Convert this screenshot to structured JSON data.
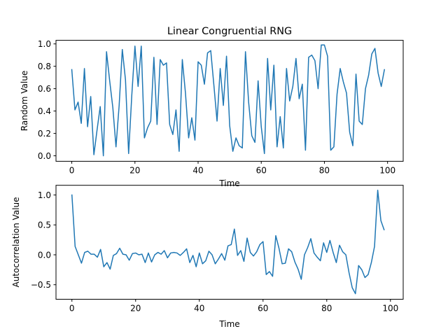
{
  "figure": {
    "background": "#ffffff",
    "line_color": "#1f77b4"
  },
  "chart_data": [
    {
      "type": "line",
      "title": "Linear Congruential RNG",
      "xlabel": "Time",
      "ylabel": "Random Value",
      "xlim": [
        -5,
        104.95
      ],
      "ylim": [
        -0.049,
        1.032
      ],
      "xticks": [
        0,
        20,
        40,
        60,
        80,
        100
      ],
      "yticks": [
        0.0,
        0.2,
        0.4,
        0.6,
        0.8,
        1.0
      ],
      "xtick_labels": [
        "0",
        "20",
        "40",
        "60",
        "80",
        "100"
      ],
      "ytick_labels": [
        "0.0",
        "0.2",
        "0.4",
        "0.6",
        "0.8",
        "1.0"
      ],
      "grid": false,
      "series": [
        {
          "x": [
            0,
            1,
            2,
            3,
            4,
            5,
            6,
            7,
            8,
            9,
            10,
            11,
            12,
            13,
            14,
            15,
            16,
            17,
            18,
            19,
            20,
            21,
            22,
            23,
            24,
            25,
            26,
            27,
            28,
            29,
            30,
            31,
            32,
            33,
            34,
            35,
            36,
            37,
            38,
            39,
            40,
            41,
            42,
            43,
            44,
            45,
            46,
            47,
            48,
            49,
            50,
            51,
            52,
            53,
            54,
            55,
            56,
            57,
            58,
            59,
            60,
            61,
            62,
            63,
            64,
            65,
            66,
            67,
            68,
            69,
            70,
            71,
            72,
            73,
            74,
            75,
            76,
            77,
            78,
            79,
            80,
            81,
            82,
            83,
            84,
            85,
            86,
            87,
            88,
            89,
            90,
            91,
            92,
            93,
            94,
            95,
            96,
            97,
            98,
            99
          ],
          "values": [
            0.77,
            0.41,
            0.48,
            0.29,
            0.78,
            0.26,
            0.53,
            0.01,
            0.23,
            0.44,
            0.0,
            0.93,
            0.67,
            0.43,
            0.08,
            0.45,
            0.95,
            0.68,
            0.02,
            0.54,
            0.98,
            0.62,
            0.98,
            0.16,
            0.25,
            0.31,
            0.88,
            0.28,
            0.86,
            0.81,
            0.83,
            0.28,
            0.19,
            0.41,
            0.04,
            0.86,
            0.56,
            0.16,
            0.34,
            0.14,
            0.84,
            0.81,
            0.64,
            0.92,
            0.94,
            0.63,
            0.31,
            0.78,
            0.45,
            0.89,
            0.27,
            0.04,
            0.16,
            0.09,
            0.07,
            0.93,
            0.48,
            0.18,
            0.12,
            0.67,
            0.26,
            0.02,
            0.87,
            0.41,
            0.81,
            0.08,
            0.35,
            0.07,
            0.78,
            0.49,
            0.62,
            0.87,
            0.51,
            0.64,
            0.05,
            0.88,
            0.9,
            0.85,
            0.6,
            0.99,
            0.99,
            0.89,
            0.05,
            0.08,
            0.55,
            0.78,
            0.66,
            0.56,
            0.21,
            0.09,
            0.73,
            0.31,
            0.28,
            0.6,
            0.72,
            0.91,
            0.96,
            0.74,
            0.62,
            0.77
          ]
        }
      ]
    },
    {
      "type": "line",
      "title": "",
      "xlabel": "Time",
      "ylabel": "Autocorrelation Value",
      "xlim": [
        -5,
        104
      ],
      "ylim": [
        -0.743,
        1.162
      ],
      "xticks": [
        0,
        20,
        40,
        60,
        80,
        100
      ],
      "yticks": [
        -0.5,
        0.0,
        0.5,
        1.0
      ],
      "xtick_labels": [
        "0",
        "20",
        "40",
        "60",
        "80",
        "100"
      ],
      "ytick_labels": [
        "−0.5",
        "0.0",
        "0.5",
        "1.0"
      ],
      "grid": false,
      "series": [
        {
          "x": [
            0,
            1,
            2,
            3,
            4,
            5,
            6,
            7,
            8,
            9,
            10,
            11,
            12,
            13,
            14,
            15,
            16,
            17,
            18,
            19,
            20,
            21,
            22,
            23,
            24,
            25,
            26,
            27,
            28,
            29,
            30,
            31,
            32,
            33,
            34,
            35,
            36,
            37,
            38,
            39,
            40,
            41,
            42,
            43,
            44,
            45,
            46,
            47,
            48,
            49,
            50,
            51,
            52,
            53,
            54,
            55,
            56,
            57,
            58,
            59,
            60,
            61,
            62,
            63,
            64,
            65,
            66,
            67,
            68,
            69,
            70,
            71,
            72,
            73,
            74,
            75,
            76,
            77,
            78,
            79,
            80,
            81,
            82,
            83,
            84,
            85,
            86,
            87,
            88,
            89,
            90,
            91,
            92,
            93,
            94,
            95,
            96,
            97,
            98
          ],
          "values": [
            1.0,
            0.14,
            0.0,
            -0.14,
            0.04,
            0.06,
            0.01,
            0.01,
            -0.04,
            0.09,
            -0.2,
            -0.13,
            -0.24,
            -0.01,
            0.02,
            0.11,
            0.01,
            0.0,
            -0.09,
            0.02,
            0.03,
            0.0,
            0.01,
            -0.13,
            0.03,
            -0.12,
            0.0,
            0.04,
            0.01,
            0.07,
            -0.05,
            0.03,
            0.04,
            0.03,
            -0.01,
            0.04,
            0.1,
            -0.13,
            -0.01,
            -0.2,
            0.03,
            -0.15,
            -0.1,
            0.06,
            0.0,
            -0.15,
            -0.07,
            0.02,
            -0.09,
            0.15,
            0.17,
            0.43,
            -0.01,
            0.07,
            -0.11,
            0.28,
            0.04,
            -0.02,
            0.05,
            0.17,
            0.22,
            -0.33,
            -0.28,
            -0.36,
            0.32,
            0.11,
            -0.15,
            -0.14,
            0.1,
            0.05,
            -0.12,
            -0.24,
            -0.41,
            0.0,
            0.12,
            0.27,
            0.03,
            -0.04,
            -0.1,
            0.2,
            0.04,
            0.24,
            0.04,
            -0.13,
            0.16,
            0.05,
            0.0,
            -0.3,
            -0.55,
            -0.65,
            -0.18,
            -0.25,
            -0.38,
            -0.33,
            -0.13,
            0.14,
            1.08,
            0.57,
            0.42
          ]
        }
      ]
    }
  ]
}
